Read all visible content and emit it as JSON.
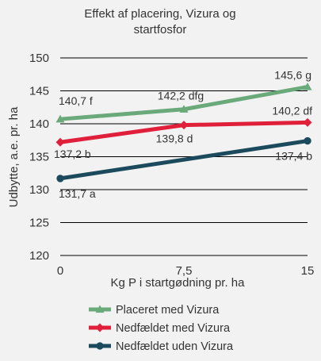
{
  "chart_data": {
    "type": "line",
    "title_lines": [
      "Effekt af placering, Vizura og",
      "startfosfor"
    ],
    "xlabel": "Kg P i startgødning pr. ha",
    "ylabel": "Udbytte, a.e. pr. ha",
    "x": [
      0,
      7.5,
      15
    ],
    "x_tick_labels": [
      "0",
      "7,5",
      "15"
    ],
    "ylim": [
      120,
      150
    ],
    "y_ticks": [
      120,
      125,
      130,
      135,
      140,
      145,
      150
    ],
    "grid": true,
    "legend_position": "bottom",
    "series": [
      {
        "name": "Placeret med Vizura",
        "color": "#6aaa7a",
        "marker": "triangle",
        "values": [
          140.7,
          142.2,
          145.6
        ],
        "labels": [
          "140,7 f",
          "142,2 dfg",
          "145,6 g"
        ]
      },
      {
        "name": "Nedfældet med Vizura",
        "color": "#e0203a",
        "marker": "diamond",
        "values": [
          137.2,
          139.8,
          140.2
        ],
        "labels": [
          "137,2 b",
          "139,8 d",
          "140,2 df"
        ]
      },
      {
        "name": "Nedfældet uden Vizura",
        "color": "#1a4a5c",
        "marker": "circle",
        "values": [
          131.7,
          null,
          137.4
        ],
        "labels": [
          "131,7 a",
          "",
          "137,4 b"
        ]
      }
    ]
  }
}
